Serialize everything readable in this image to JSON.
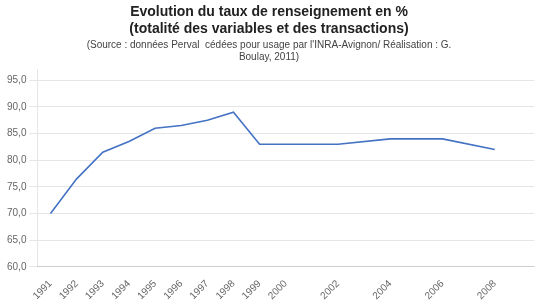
{
  "chart_data": {
    "type": "line",
    "title": "Evolution du taux de renseignement en %\n(totalité des variables et des transactions)",
    "subtitle": "(Source : données Perval  cédées pour usage par l'INRA-Avignon/ Réalisation : G.\nBoulay, 2011)",
    "x": [
      1991,
      1992,
      1993,
      1994,
      1995,
      1996,
      1997,
      1998,
      1999,
      2000,
      2002,
      2004,
      2006,
      2008
    ],
    "values": [
      70.0,
      76.5,
      81.5,
      83.5,
      86.0,
      86.5,
      87.5,
      89.0,
      83.0,
      83.0,
      83.0,
      84.0,
      84.0,
      82.0
    ],
    "color": "#4472C4",
    "xlim": [
      1990.5,
      2009.5
    ],
    "xticks": [
      1991,
      1992,
      1993,
      1994,
      1995,
      1996,
      1997,
      1998,
      1999,
      2000,
      2002,
      2004,
      2006,
      2008
    ],
    "ylim": [
      60,
      97
    ],
    "yticks": [
      {
        "value": 60,
        "label": "60,0"
      },
      {
        "value": 65,
        "label": "65,0"
      },
      {
        "value": 70,
        "label": "70,0"
      },
      {
        "value": 75,
        "label": "75,0"
      },
      {
        "value": 80,
        "label": "80,0"
      },
      {
        "value": 85,
        "label": "85,0"
      },
      {
        "value": 90,
        "label": "90,0"
      },
      {
        "value": 95,
        "label": "95,0"
      }
    ],
    "grid": "y"
  }
}
